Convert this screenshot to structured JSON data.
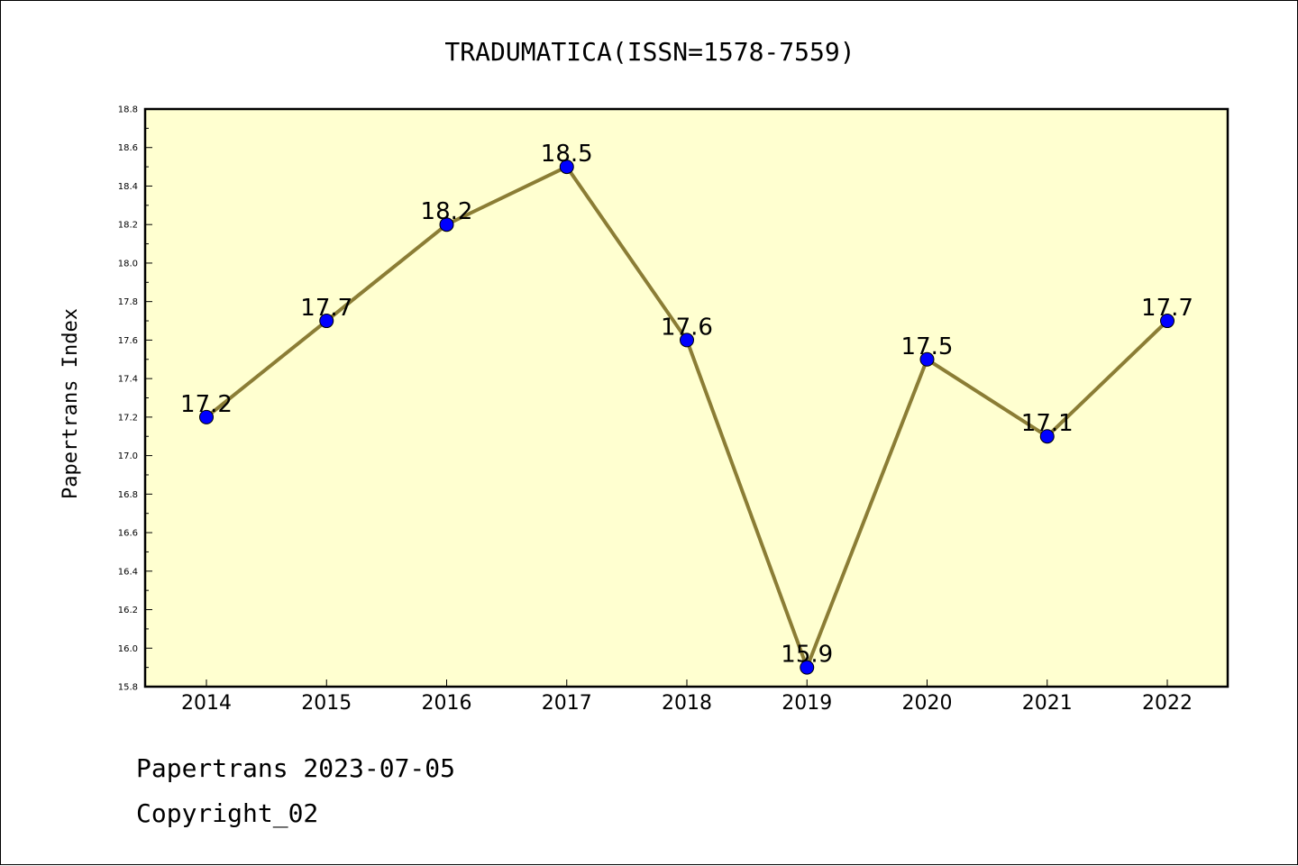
{
  "chart_data": {
    "type": "line",
    "title": "TRADUMATICA(ISSN=1578-7559)",
    "ylabel": "Papertrans Index",
    "xlabel": "",
    "categories": [
      "2014",
      "2015",
      "2016",
      "2017",
      "2018",
      "2019",
      "2020",
      "2021",
      "2022"
    ],
    "values": [
      17.2,
      17.7,
      18.2,
      18.5,
      17.6,
      15.9,
      17.5,
      17.1,
      17.7
    ],
    "data_labels": [
      "17.2",
      "17.7",
      "18.2",
      "18.5",
      "17.6",
      "15.9",
      "17.5",
      "17.1",
      "17.7"
    ],
    "ylim": [
      15.8,
      18.8
    ],
    "yticks": [
      "15.8",
      "16.0",
      "16.2",
      "16.4",
      "16.6",
      "16.8",
      "17.0",
      "17.2",
      "17.4",
      "17.6",
      "17.8",
      "18.0",
      "18.2",
      "18.4",
      "18.6",
      "18.8"
    ],
    "grid": false,
    "colors": {
      "plot_bg": "#ffffd0",
      "line": "#8b7d35",
      "marker": "#0000ff"
    }
  },
  "footer": {
    "line1": "Papertrans 2023-07-05",
    "line2": "Copyright_02"
  }
}
